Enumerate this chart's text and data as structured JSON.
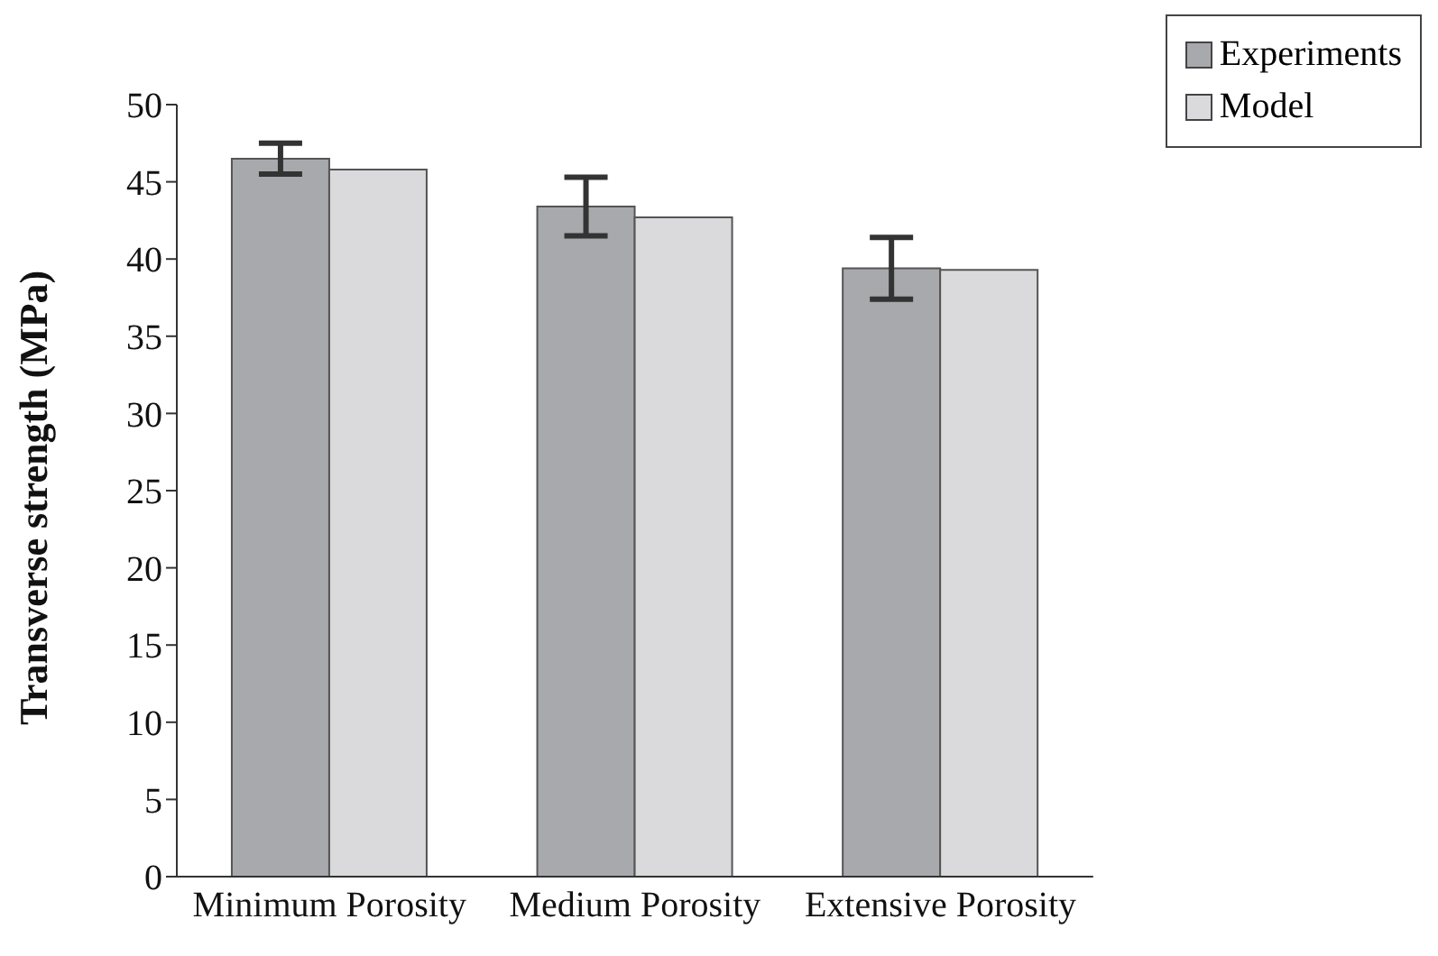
{
  "chart_data": {
    "type": "bar",
    "ylabel": "Transverse strength (MPa)",
    "categories": [
      "Minimum Porosity",
      "Medium Porosity",
      "Extensive Porosity"
    ],
    "series": [
      {
        "name": "Experiments",
        "color": "#a8a9ad",
        "values": [
          46.5,
          43.4,
          39.4
        ],
        "errors": [
          1,
          1.9,
          2
        ]
      },
      {
        "name": "Model",
        "color": "#dadadc",
        "values": [
          45.8,
          42.7,
          39.3
        ]
      }
    ],
    "ylim": [
      0,
      50
    ],
    "yticks": [
      0,
      5,
      10,
      15,
      20,
      25,
      30,
      35,
      40,
      45,
      50
    ],
    "grid": false,
    "legend": "top right"
  }
}
